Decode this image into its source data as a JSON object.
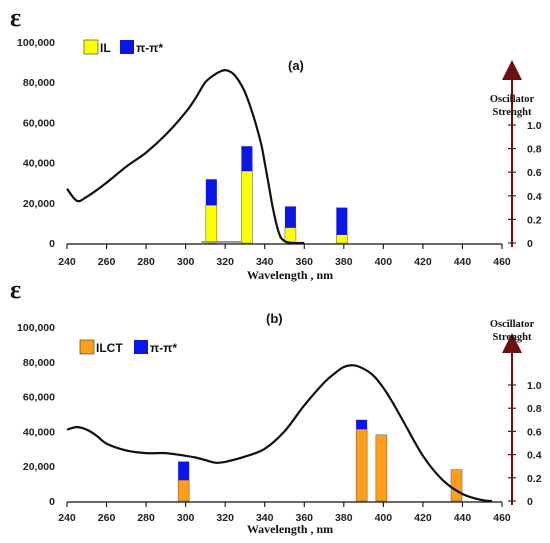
{
  "chart_data": [
    {
      "type": "bar",
      "panel_label": "(a)",
      "y_symbol": "ε",
      "xlabel": "Wavelength , nm",
      "x_ticks": [
        240,
        260,
        280,
        300,
        320,
        340,
        360,
        380,
        400,
        420,
        440,
        460
      ],
      "y_ticks": [
        "100,000",
        "80,000",
        "60,000",
        "40,000",
        "20,000",
        "0"
      ],
      "y_tick_values": [
        100000,
        80000,
        60000,
        40000,
        20000,
        0
      ],
      "ylim": [
        0,
        100000
      ],
      "y2label": "Oscillator Strenght",
      "y2_ticks": [
        "1.0",
        "0.8",
        "0.6",
        "0.4",
        "0.2",
        "0"
      ],
      "y2_tick_values": [
        1.0,
        0.8,
        0.6,
        0.4,
        0.2,
        0
      ],
      "xlim": [
        240,
        460
      ],
      "series": [
        {
          "name": "IL",
          "color": "#ffff00",
          "x": [
            313,
            331,
            353,
            379
          ],
          "values": [
            0.32,
            0.61,
            0.13,
            0.07
          ]
        },
        {
          "name": "π-π*",
          "color": "#0a16e6",
          "x": [
            313,
            331,
            353,
            379
          ],
          "values": [
            0.22,
            0.21,
            0.18,
            0.23
          ]
        }
      ],
      "absorption_curve": {
        "x": [
          240,
          245,
          250,
          260,
          270,
          280,
          290,
          300,
          305,
          310,
          315,
          318,
          320,
          323,
          326,
          330,
          334,
          338,
          340,
          342,
          344,
          346,
          348,
          350,
          352,
          355,
          360
        ],
        "y": [
          27000,
          21000,
          23000,
          30000,
          38000,
          45000,
          54000,
          65000,
          72000,
          80000,
          84000,
          85500,
          86000,
          85000,
          82000,
          75000,
          64000,
          50000,
          40000,
          29000,
          18000,
          9000,
          3000,
          1000,
          300,
          0,
          0
        ]
      },
      "baseline_marker": {
        "x": [
          308,
          328
        ],
        "y": 0
      }
    },
    {
      "type": "bar",
      "panel_label": "(b)",
      "y_symbol": "ε",
      "xlabel": "Wavelength , nm",
      "x_ticks": [
        240,
        260,
        280,
        300,
        320,
        340,
        360,
        380,
        400,
        420,
        440,
        460
      ],
      "y_ticks": [
        "100,000",
        "80,000",
        "60,000",
        "40,000",
        "20,000",
        "0"
      ],
      "y_tick_values": [
        100000,
        80000,
        60000,
        40000,
        20000,
        0
      ],
      "ylim": [
        0,
        100000
      ],
      "y2label": "Oscillator Strenght",
      "y2_ticks": [
        "1.0",
        "0.8",
        "0.6",
        "0.4",
        "0.2",
        "0"
      ],
      "y2_tick_values": [
        1.0,
        0.8,
        0.6,
        0.4,
        0.2,
        0
      ],
      "xlim": [
        240,
        460
      ],
      "series": [
        {
          "name": "ILCT",
          "color": "#ff9e1b",
          "x": [
            299,
            389,
            399,
            437
          ],
          "values": [
            0.18,
            0.62,
            0.57,
            0.27
          ]
        },
        {
          "name": "π-π*",
          "color": "#0a16e6",
          "x": [
            299,
            389,
            399,
            437
          ],
          "values": [
            0.16,
            0.08,
            0.0,
            0.0
          ]
        }
      ],
      "absorption_curve": {
        "x": [
          240,
          245,
          250,
          255,
          260,
          270,
          280,
          290,
          300,
          305,
          310,
          315,
          320,
          330,
          340,
          350,
          360,
          370,
          375,
          380,
          385,
          390,
          395,
          400,
          405,
          410,
          420,
          430,
          440,
          450,
          455
        ],
        "y": [
          41000,
          42500,
          41000,
          37500,
          33000,
          29000,
          27500,
          27500,
          26000,
          25000,
          23500,
          22000,
          22500,
          25500,
          30000,
          40000,
          55000,
          68000,
          73000,
          77000,
          78000,
          76000,
          72000,
          65000,
          56000,
          46000,
          26000,
          12000,
          4000,
          500,
          0
        ]
      }
    }
  ]
}
